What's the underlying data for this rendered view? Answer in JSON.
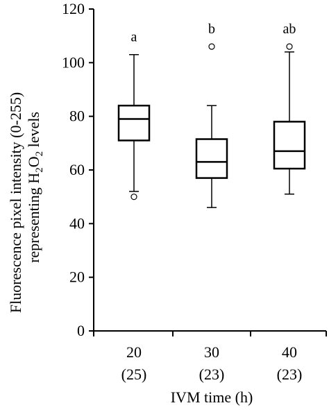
{
  "chart_data": {
    "type": "box",
    "xlabel": "IVM time (h)",
    "ylabel_line1": "Fluorescence pixel intensity (0-255)",
    "ylabel_line2_prefix": "representing H",
    "ylabel_line2_sub1": "2",
    "ylabel_line2_mid": "O",
    "ylabel_line2_sub2": "2",
    "ylabel_line2_suffix": " levels",
    "ylim": [
      0,
      120
    ],
    "yticks": [
      0,
      20,
      40,
      60,
      80,
      100,
      120
    ],
    "grid": false,
    "categories": [
      {
        "label": "20",
        "n": "(25)"
      },
      {
        "label": "30",
        "n": "(23)"
      },
      {
        "label": "40",
        "n": "(23)"
      }
    ],
    "boxes": [
      {
        "whisker_low": 52,
        "q1": 71,
        "median": 79,
        "q3": 84,
        "whisker_high": 103,
        "outliers": [
          50
        ],
        "letter": "a"
      },
      {
        "whisker_low": 46,
        "q1": 57,
        "median": 63,
        "q3": 71.5,
        "whisker_high": 84,
        "outliers": [
          106
        ],
        "letter": "b"
      },
      {
        "whisker_low": 51,
        "q1": 60.5,
        "median": 67,
        "q3": 78,
        "whisker_high": 104,
        "outliers": [
          106
        ],
        "letter": "ab"
      }
    ]
  }
}
